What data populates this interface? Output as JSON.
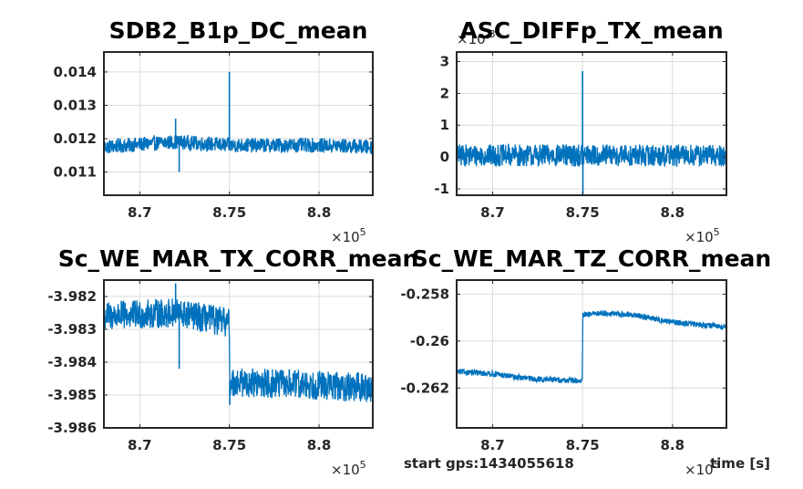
{
  "figure": {
    "footer_gps": "start gps:1434055618",
    "footer_xlabel": "time [s]"
  },
  "chart_data": [
    {
      "type": "line",
      "title": "SDB2_B1p_DC_mean",
      "x_exponent_label": "×10",
      "x_exponent_power": "5",
      "xlim": [
        8.68,
        8.83
      ],
      "x_ticks": [
        8.7,
        8.75,
        8.8
      ],
      "x_tick_labels": [
        "8.7",
        "8.75",
        "8.8"
      ],
      "ylim": [
        0.0103,
        0.0146
      ],
      "y_ticks": [
        0.011,
        0.012,
        0.013,
        0.014
      ],
      "y_tick_labels": [
        "0.011",
        "0.012",
        "0.013",
        "0.014"
      ],
      "y_exponent_label": "",
      "grid": true,
      "series_color": "#0072bd",
      "baseline": [
        [
          8.68,
          0.01175
        ],
        [
          8.72,
          0.0119
        ],
        [
          8.75,
          0.0118
        ],
        [
          8.8,
          0.0118
        ],
        [
          8.83,
          0.01175
        ]
      ],
      "noise_amplitude": 0.00022,
      "spikes": [
        [
          8.72,
          0.0126
        ],
        [
          8.722,
          0.011
        ],
        [
          8.75,
          0.014
        ]
      ]
    },
    {
      "type": "line",
      "title": "ASC_DIFFp_TX_mean",
      "x_exponent_label": "×10",
      "x_exponent_power": "5",
      "xlim": [
        8.68,
        8.83
      ],
      "x_ticks": [
        8.7,
        8.75,
        8.8
      ],
      "x_tick_labels": [
        "8.7",
        "8.75",
        "8.8"
      ],
      "ylim": [
        -1.2,
        3.3
      ],
      "y_ticks": [
        -1,
        0,
        1,
        2,
        3
      ],
      "y_tick_labels": [
        "-1",
        "0",
        "1",
        "2",
        "3"
      ],
      "y_exponent_label": "×10",
      "y_exponent_power": "-3",
      "grid": true,
      "series_color": "#0072bd",
      "baseline": [
        [
          8.68,
          0.05
        ],
        [
          8.75,
          0.05
        ],
        [
          8.83,
          0.05
        ]
      ],
      "noise_amplitude": 0.35,
      "spikes": [
        [
          8.75,
          2.7
        ],
        [
          8.7502,
          -1.2
        ]
      ]
    },
    {
      "type": "line",
      "title": "Sc_WE_MAR_TX_CORR_mean",
      "x_exponent_label": "×10",
      "x_exponent_power": "5",
      "xlim": [
        8.68,
        8.83
      ],
      "x_ticks": [
        8.7,
        8.75,
        8.8
      ],
      "x_tick_labels": [
        "8.7",
        "8.75",
        "8.8"
      ],
      "ylim": [
        -3.986,
        -3.9815
      ],
      "y_ticks": [
        -3.986,
        -3.985,
        -3.984,
        -3.983,
        -3.982
      ],
      "y_tick_labels": [
        "-3.986",
        "-3.985",
        "-3.984",
        "-3.983",
        "-3.982"
      ],
      "y_exponent_label": "",
      "grid": true,
      "series_color": "#0072bd",
      "baseline": [
        [
          8.68,
          -3.9826
        ],
        [
          8.72,
          -3.9825
        ],
        [
          8.7499,
          -3.9828
        ],
        [
          8.7501,
          -3.9846
        ],
        [
          8.8,
          -3.9847
        ],
        [
          8.83,
          -3.9848
        ]
      ],
      "noise_amplitude": 0.00045,
      "spikes": [
        [
          8.72,
          -3.9816
        ],
        [
          8.722,
          -3.9842
        ],
        [
          8.7502,
          -3.9853
        ]
      ]
    },
    {
      "type": "line",
      "title": "Sc_WE_MAR_TZ_CORR_mean",
      "x_exponent_label": "×10",
      "x_exponent_power": "5",
      "xlim": [
        8.68,
        8.83
      ],
      "x_ticks": [
        8.7,
        8.75,
        8.8
      ],
      "x_tick_labels": [
        "8.7",
        "8.75",
        "8.8"
      ],
      "ylim": [
        -0.2637,
        -0.2574
      ],
      "y_ticks": [
        -0.262,
        -0.26,
        -0.258
      ],
      "y_tick_labels": [
        "-0.262",
        "-0.26",
        "-0.258"
      ],
      "y_exponent_label": "",
      "grid": true,
      "series_color": "#0072bd",
      "baseline": [
        [
          8.68,
          -0.2613
        ],
        [
          8.7,
          -0.2614
        ],
        [
          8.72,
          -0.2616
        ],
        [
          8.7499,
          -0.2617
        ],
        [
          8.7501,
          -0.2589
        ],
        [
          8.76,
          -0.2588
        ],
        [
          8.78,
          -0.2589
        ],
        [
          8.8,
          -0.2592
        ],
        [
          8.83,
          -0.2594
        ]
      ],
      "noise_amplitude": 0.00012,
      "spikes": []
    }
  ]
}
